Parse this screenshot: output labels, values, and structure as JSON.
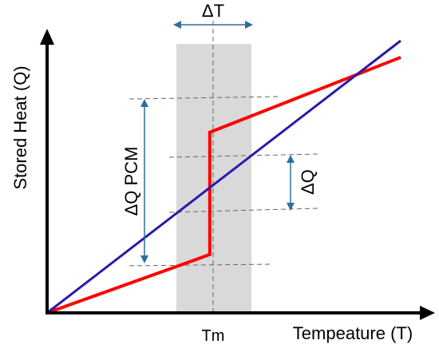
{
  "chart_data": {
    "type": "line",
    "xlabel": "Tempeature (T)",
    "ylabel": "Stored Heat (Q)",
    "x_ticks": [
      "Tm"
    ],
    "grid": false,
    "series": [
      {
        "color": "#ff0000",
        "points": [
          [
            0,
            0
          ],
          [
            0.46,
            0.21
          ],
          [
            0.46,
            0.65
          ],
          [
            1.0,
            0.92
          ]
        ]
      },
      {
        "color": "#2a1aa8",
        "points": [
          [
            0,
            0
          ],
          [
            1.0,
            0.98
          ]
        ]
      }
    ],
    "annotations": {
      "delta_t": "ΔT",
      "delta_q_pcm": "ΔQ PCM",
      "delta_q": "ΔQ"
    },
    "colors": {
      "band": "#d9d9d9",
      "arrow": "#2e6f97",
      "axis": "#000000"
    }
  }
}
